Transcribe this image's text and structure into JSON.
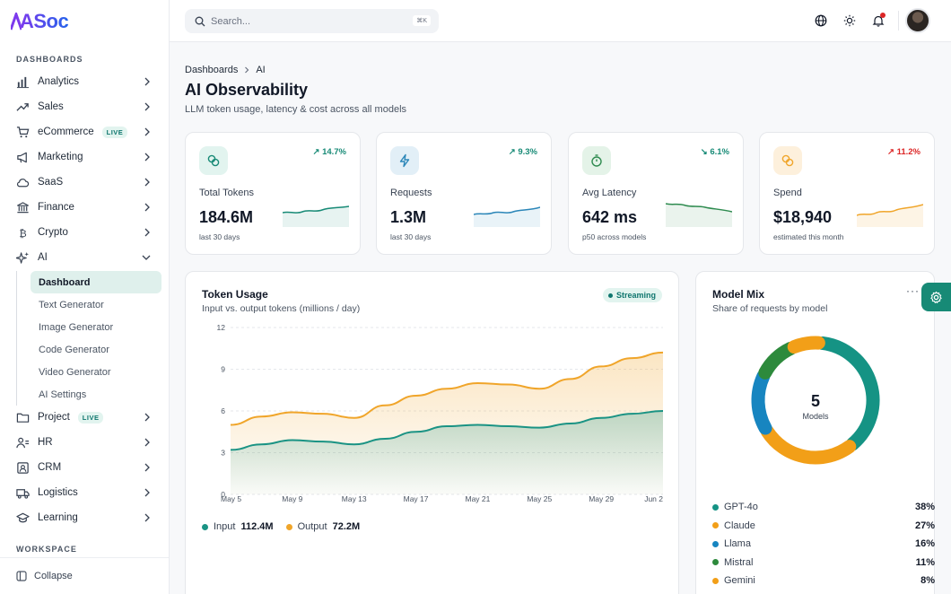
{
  "app": {
    "logo": "ASoc"
  },
  "sidebar": {
    "section_dashboards": "DASHBOARDS",
    "section_workspace": "WORKSPACE",
    "items": [
      {
        "label": "Analytics",
        "icon": "bar-chart-icon"
      },
      {
        "label": "Sales",
        "icon": "trend-up-icon"
      },
      {
        "label": "eCommerce",
        "icon": "cart-icon",
        "badge": "LIVE"
      },
      {
        "label": "Marketing",
        "icon": "megaphone-icon"
      },
      {
        "label": "SaaS",
        "icon": "cloud-icon"
      },
      {
        "label": "Finance",
        "icon": "bank-icon"
      },
      {
        "label": "Crypto",
        "icon": "bitcoin-icon"
      },
      {
        "label": "AI",
        "icon": "sparkle-icon",
        "expanded": true
      }
    ],
    "ai_children": [
      "Dashboard",
      "Text Generator",
      "Image Generator",
      "Code Generator",
      "Video Generator",
      "AI Settings"
    ],
    "ai_active": "Dashboard",
    "items_after": [
      {
        "label": "Project",
        "icon": "folder-icon",
        "badge": "LIVE"
      },
      {
        "label": "HR",
        "icon": "users-icon"
      },
      {
        "label": "CRM",
        "icon": "contact-icon"
      },
      {
        "label": "Logistics",
        "icon": "truck-icon"
      },
      {
        "label": "Learning",
        "icon": "graduation-cap-icon"
      }
    ],
    "collapse_label": "Collapse"
  },
  "topbar": {
    "search_placeholder": "Search...",
    "search_shortcut": "⌘K",
    "notification_dot_color": "#dc2626"
  },
  "breadcrumb": {
    "root": "Dashboards",
    "current": "AI"
  },
  "page": {
    "title": "AI Observability",
    "subtitle": "LLM token usage, latency & cost across all models"
  },
  "kpis": [
    {
      "label": "Total Tokens",
      "value": "184.6M",
      "sub": "last 30 days",
      "delta": "14.7%",
      "direction": "up",
      "color": "#178a76"
    },
    {
      "label": "Requests",
      "value": "1.3M",
      "sub": "last 30 days",
      "delta": "9.3%",
      "direction": "up",
      "color": "#2b86b8"
    },
    {
      "label": "Avg Latency",
      "value": "642 ms",
      "sub": "p50 across models",
      "delta": "6.1%",
      "direction": "down",
      "color": "#2e8b4f"
    },
    {
      "label": "Spend",
      "value": "$18,940",
      "sub": "estimated this month",
      "delta": "11.2%",
      "direction": "up",
      "color": "#f0a52a"
    }
  ],
  "token_usage": {
    "title": "Token Usage",
    "subtitle": "Input vs. output tokens (millions / day)",
    "badge": "Streaming",
    "legend": [
      {
        "name": "Input",
        "total": "112.4M",
        "color": "#1a9384"
      },
      {
        "name": "Output",
        "total": "72.2M",
        "color": "#f0a52a"
      }
    ]
  },
  "model_mix": {
    "title": "Model Mix",
    "subtitle": "Share of requests by model",
    "center_value": "5",
    "center_label": "Models",
    "rows": [
      {
        "name": "GPT-4o",
        "pct": "38%",
        "color": "#159384"
      },
      {
        "name": "Claude",
        "pct": "27%",
        "color": "#f29f18"
      },
      {
        "name": "Llama",
        "pct": "16%",
        "color": "#1785c0"
      },
      {
        "name": "Mistral",
        "pct": "11%",
        "color": "#2d8a3c"
      },
      {
        "name": "Gemini",
        "pct": "8%",
        "color": "#f29f18"
      }
    ]
  },
  "chart_data": [
    {
      "type": "area",
      "title": "Token Usage",
      "subtitle": "Input vs. output tokens (millions / day)",
      "x_ticks": [
        "May 5",
        "May 9",
        "May 13",
        "May 17",
        "May 21",
        "May 25",
        "May 29",
        "Jun 2"
      ],
      "y_ticks": [
        0,
        3,
        6,
        9,
        12
      ],
      "ylim": [
        0,
        12
      ],
      "grid": true,
      "x": [
        "May 5",
        "May 7",
        "May 9",
        "May 11",
        "May 13",
        "May 15",
        "May 17",
        "May 19",
        "May 21",
        "May 23",
        "May 25",
        "May 27",
        "May 29",
        "May 31",
        "Jun 2"
      ],
      "series": [
        {
          "name": "Input",
          "color": "#1a9384",
          "values": [
            3.2,
            3.6,
            3.9,
            3.8,
            3.6,
            4.0,
            4.5,
            4.9,
            5.0,
            4.9,
            4.8,
            5.1,
            5.5,
            5.8,
            6.0
          ]
        },
        {
          "name": "Output",
          "color": "#f0a52a",
          "values": [
            5.0,
            5.6,
            5.9,
            5.8,
            5.5,
            6.4,
            7.1,
            7.6,
            8.0,
            7.9,
            7.6,
            8.3,
            9.2,
            9.8,
            10.2
          ]
        }
      ]
    },
    {
      "type": "pie",
      "title": "Model Mix",
      "categories": [
        "GPT-4o",
        "Claude",
        "Llama",
        "Mistral",
        "Gemini"
      ],
      "values": [
        38,
        27,
        16,
        11,
        8
      ],
      "colors": [
        "#159384",
        "#f29f18",
        "#1785c0",
        "#2d8a3c",
        "#f29f18"
      ]
    }
  ]
}
